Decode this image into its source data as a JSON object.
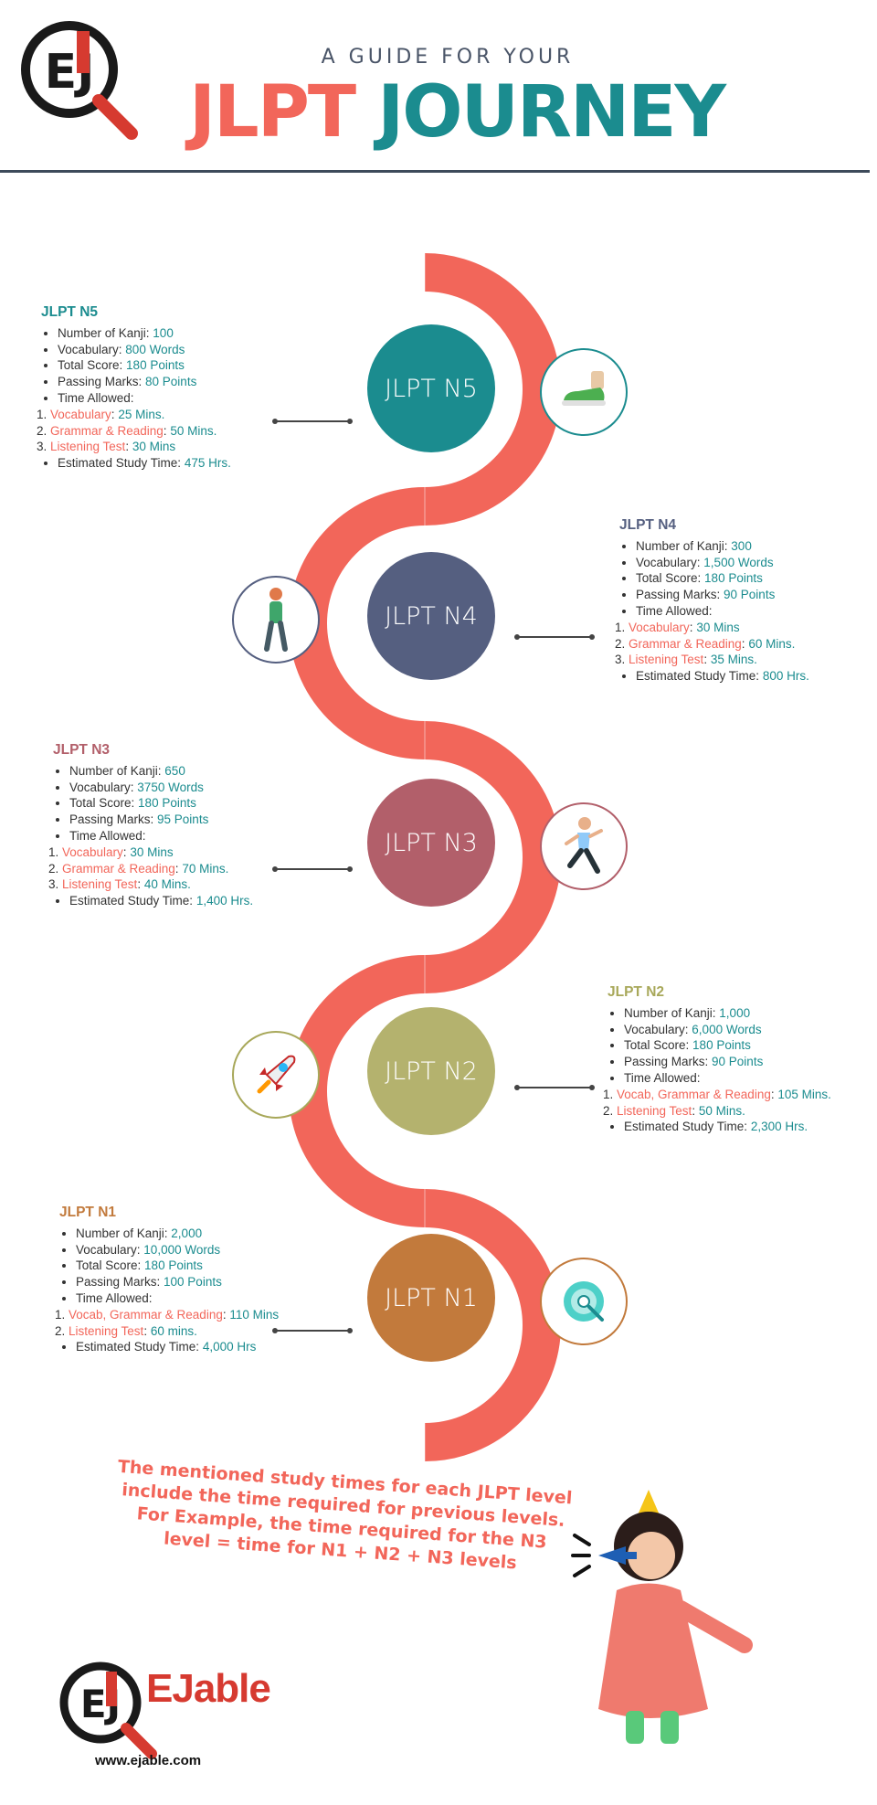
{
  "header": {
    "subtitle": "A GUIDE FOR YOUR",
    "title_part1": "JLPT",
    "title_part2": "JOURNEY",
    "logo_text": "EJ"
  },
  "colors": {
    "path": "#f2665a",
    "teal": "#1b8c8f",
    "red": "#f2665a"
  },
  "levels": [
    {
      "circle_label": "JLPT N5",
      "color": "#1b8c8f",
      "heading_color": "#1b8c8f",
      "icon": "sneaker-icon",
      "heading": "JLPT N5",
      "kanji_label": "Number of Kanji: ",
      "kanji": "100",
      "vocab_label": "Vocabulary: ",
      "vocab": "800 Words",
      "score_label": "Total Score: ",
      "score": "180 Points",
      "pass_label": "Passing Marks: ",
      "pass": "80 Points",
      "time_label": "Time Allowed:",
      "sections": [
        {
          "name": "Vocabulary",
          "sep": ": ",
          "time": "25 Mins."
        },
        {
          "name": "Grammar & Reading",
          "sep": ": ",
          "time": "50 Mins."
        },
        {
          "name": "Listening Test",
          "sep": ": ",
          "time": "30 Mins"
        }
      ],
      "study_label": "Estimated Study Time: ",
      "study": "475 Hrs."
    },
    {
      "circle_label": "JLPT N4",
      "color": "#555f80",
      "heading_color": "#555f80",
      "icon": "walking-person-icon",
      "heading": "JLPT N4",
      "kanji_label": "Number of Kanji: ",
      "kanji": "300",
      "vocab_label": "Vocabulary: ",
      "vocab": "1,500 Words",
      "score_label": "Total Score: ",
      "score": "180 Points",
      "pass_label": "Passing Marks: ",
      "pass": "90 Points",
      "time_label": "Time Allowed:",
      "sections": [
        {
          "name": "Vocabulary",
          "sep": ": ",
          "time": "30 Mins"
        },
        {
          "name": "Grammar & Reading",
          "sep": ": ",
          "time": "60 Mins."
        },
        {
          "name": "Listening Test",
          "sep": ": ",
          "time": "35 Mins."
        }
      ],
      "study_label": "Estimated Study Time: ",
      "study": "800 Hrs."
    },
    {
      "circle_label": "JLPT N3",
      "color": "#b25f6a",
      "heading_color": "#b25f6a",
      "icon": "running-person-icon",
      "heading": "JLPT N3",
      "kanji_label": "Number of Kanji: ",
      "kanji": "650",
      "vocab_label": "Vocabulary: ",
      "vocab": "3750 Words",
      "score_label": "Total Score: ",
      "score": "180 Points",
      "pass_label": "Passing Marks: ",
      "pass": "95 Points",
      "time_label": "Time Allowed:",
      "sections": [
        {
          "name": "Vocabulary",
          "sep": ": ",
          "time": "30 Mins"
        },
        {
          "name": "Grammar & Reading",
          "sep": ": ",
          "time": "70 Mins."
        },
        {
          "name": "Listening Test",
          "sep": ": ",
          "time": "40 Mins."
        }
      ],
      "study_label": "Estimated Study Time: ",
      "study": "1,400 Hrs."
    },
    {
      "circle_label": "JLPT N2",
      "color": "#b4b26e",
      "heading_color": "#a8a85a",
      "icon": "rocket-icon",
      "heading": "JLPT N2",
      "kanji_label": "Number of Kanji: ",
      "kanji": "1,000",
      "vocab_label": "Vocabulary: ",
      "vocab": "6,000 Words",
      "score_label": "Total Score: ",
      "score": "180 Points",
      "pass_label": "Passing Marks: ",
      "pass": "90 Points",
      "time_label": "Time Allowed:",
      "sections": [
        {
          "name": "Vocab, Grammar & Reading",
          "sep": ": ",
          "time": "105 Mins."
        },
        {
          "name": "Listening Test",
          "sep": ": ",
          "time": "50 Mins."
        }
      ],
      "study_label": "Estimated Study Time: ",
      "study": "2,300 Hrs."
    },
    {
      "circle_label": "JLPT N1",
      "color": "#c27a3c",
      "heading_color": "#c27a3c",
      "icon": "target-icon",
      "heading": "JLPT N1",
      "kanji_label": "Number of Kanji: ",
      "kanji": "2,000",
      "vocab_label": "Vocabulary: ",
      "vocab": "10,000 Words",
      "score_label": "Total Score: ",
      "score": "180 Points",
      "pass_label": "Passing Marks: ",
      "pass": "100 Points",
      "time_label": "Time Allowed:",
      "sections": [
        {
          "name": "Vocab, Grammar & Reading",
          "sep": ": ",
          "time": "110 Mins"
        },
        {
          "name": "Listening Test",
          "sep": ": ",
          "time": "60 mins."
        }
      ],
      "study_label": "Estimated Study Time: ",
      "study": "4,000 Hrs"
    }
  ],
  "footer": {
    "note": "The mentioned study times for each JLPT level include the time required for previous levels. For Example, the time required for the N3 level = time for N1 + N2 + N3 levels",
    "brand": "EJable",
    "url": "www.ejable.com"
  }
}
